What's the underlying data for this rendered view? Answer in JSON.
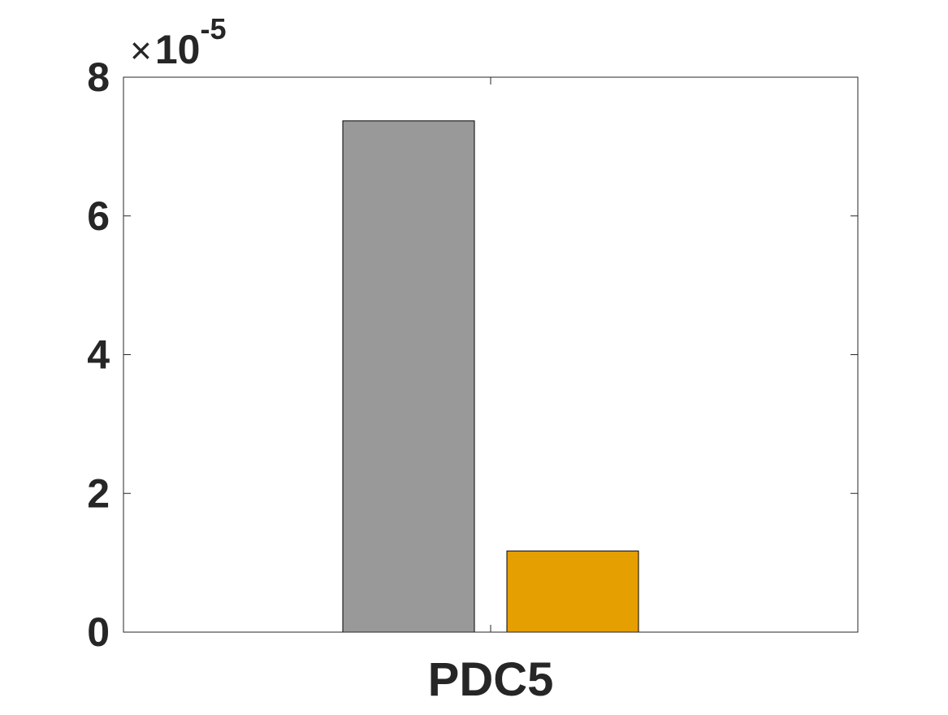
{
  "chart_data": {
    "type": "bar",
    "title": "",
    "xlabel": "",
    "ylabel": "",
    "categories": [
      "PDC5"
    ],
    "series": [
      {
        "values": [
          7.37e-05
        ],
        "color": "#999999"
      },
      {
        "values": [
          1.17e-05
        ],
        "color": "#E69F00"
      }
    ],
    "ylim": [
      0,
      8e-05
    ],
    "yticks": [
      0,
      2e-05,
      4e-05,
      6e-05,
      8e-05
    ],
    "ytick_labels": [
      "0",
      "2",
      "4",
      "6",
      "8"
    ],
    "axis_exponent": {
      "times": "×",
      "base": "10",
      "exponent": "-5"
    },
    "grid": false,
    "legend": false,
    "bar_edge_color": "#000000",
    "axis_color": "#262626",
    "background": "#ffffff"
  }
}
